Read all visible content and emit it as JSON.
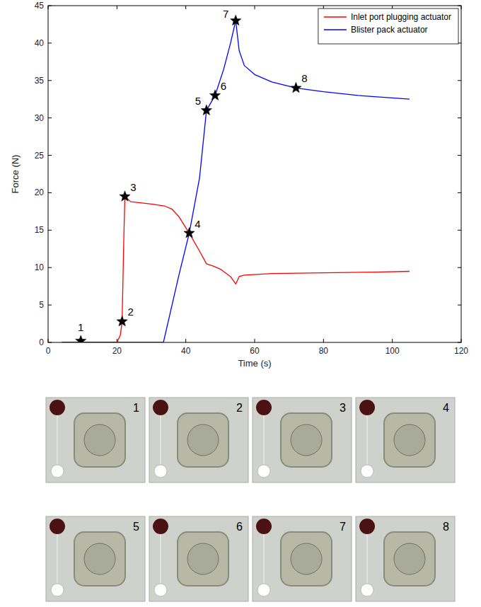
{
  "chart_data": {
    "type": "line",
    "xlabel": "Time (s)",
    "ylabel": "Force (N)",
    "xlim": [
      0,
      120
    ],
    "ylim": [
      0,
      45
    ],
    "xticks": [
      0,
      20,
      40,
      60,
      80,
      100,
      120
    ],
    "yticks": [
      0,
      5,
      10,
      15,
      20,
      25,
      30,
      35,
      40,
      45
    ],
    "grid": false,
    "legend": "upper right",
    "series": [
      {
        "name": "Inlet port plugging actuator",
        "color": "#ff0000",
        "x": [
          4,
          20,
          21,
          21.5,
          22,
          22.3,
          24,
          30,
          34,
          36,
          38,
          41,
          44,
          46,
          48,
          50,
          53,
          54.5,
          55.5,
          57,
          65,
          80,
          95,
          105
        ],
        "values": [
          0,
          0,
          1,
          2.8,
          14,
          19.5,
          18.8,
          18.5,
          18.2,
          17.8,
          16.8,
          14.6,
          12.2,
          10.5,
          10.2,
          9.8,
          8.8,
          7.8,
          8.8,
          9.0,
          9.2,
          9.3,
          9.4,
          9.5
        ]
      },
      {
        "name": "Blister pack actuator",
        "color": "#0000ff",
        "x": [
          4,
          33.5,
          36,
          38,
          41,
          44,
          46,
          48.5,
          51,
          53,
          54.5,
          55.5,
          57,
          60,
          65,
          72,
          80,
          90,
          105
        ],
        "values": [
          0,
          0,
          5,
          9,
          14.6,
          22,
          31,
          33,
          36.5,
          40,
          43,
          39,
          37,
          35.8,
          34.8,
          34,
          33.5,
          33,
          32.5
        ]
      }
    ],
    "annotations": [
      {
        "label": "1",
        "x": 9.5,
        "y": 0.2
      },
      {
        "label": "2",
        "x": 21.5,
        "y": 2.8
      },
      {
        "label": "3",
        "x": 22.3,
        "y": 19.5
      },
      {
        "label": "4",
        "x": 41,
        "y": 14.6
      },
      {
        "label": "5",
        "x": 46,
        "y": 31
      },
      {
        "label": "6",
        "x": 48.5,
        "y": 33
      },
      {
        "label": "7",
        "x": 54.5,
        "y": 43
      },
      {
        "label": "8",
        "x": 72,
        "y": 34
      }
    ]
  },
  "photos": {
    "labels": [
      "1",
      "2",
      "3",
      "4",
      "5",
      "6",
      "7",
      "8"
    ]
  }
}
